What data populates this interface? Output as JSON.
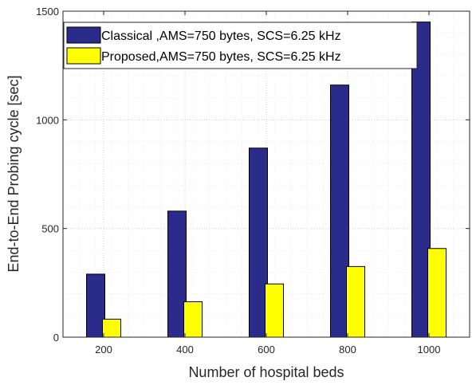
{
  "chart_data": {
    "type": "bar",
    "categories": [
      "200",
      "400",
      "600",
      "800",
      "1000"
    ],
    "series": [
      {
        "name": "Classical ,AMS=750 bytes, SCS=6.25 kHz",
        "values": [
          290,
          580,
          870,
          1160,
          1450
        ],
        "color": "#2b2b8c"
      },
      {
        "name": "Proposed,AMS=750 bytes, SCS=6.25 kHz",
        "values": [
          83,
          163,
          245,
          325,
          408
        ],
        "color": "#ffff00"
      }
    ],
    "xlabel": "Number of hospital beds",
    "ylabel": "End-to-End Probing cycle [sec]",
    "ylim": [
      0,
      1500
    ],
    "yticks": [
      0,
      500,
      1000,
      1500
    ],
    "grid": true,
    "minor_grid": true,
    "legend_position": "top-left"
  }
}
